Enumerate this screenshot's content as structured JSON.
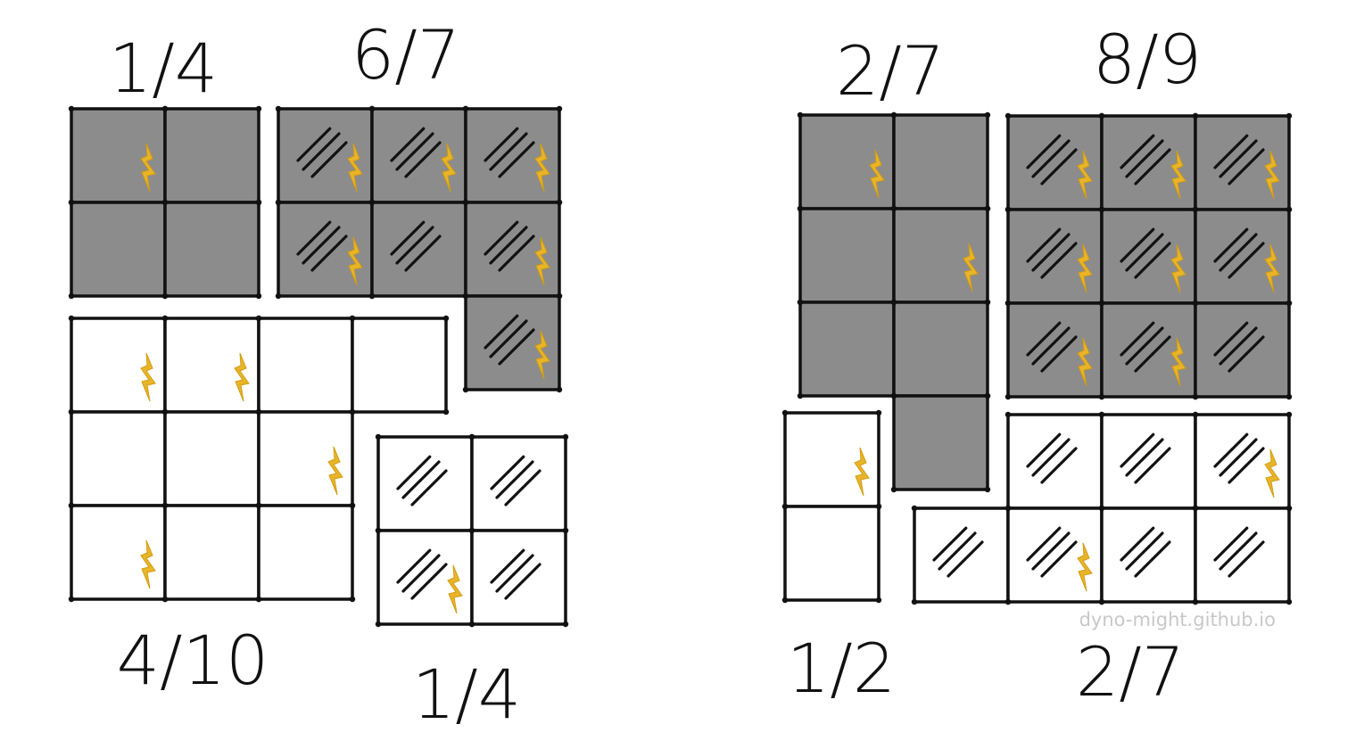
{
  "diagram": {
    "colors": {
      "shaded": "#8c8c8c",
      "plain": "#ffffff",
      "outline": "#111111",
      "bolt": "#e8b52a"
    },
    "icons": {
      "bolt": "lightning-bolt-icon",
      "hatch": "hatch-lines-icon"
    },
    "credit": "dyno-might.github.io",
    "groups": [
      {
        "id": "g1",
        "label": "1/4",
        "shaded": true,
        "hatched": false,
        "cells": 4,
        "bolts": 1
      },
      {
        "id": "g2",
        "label": "6/7",
        "shaded": true,
        "hatched": true,
        "cells": 7,
        "bolts": 6
      },
      {
        "id": "g3",
        "label": "4/10",
        "shaded": false,
        "hatched": false,
        "cells": 10,
        "bolts": 4
      },
      {
        "id": "g4",
        "label": "1/4",
        "shaded": false,
        "hatched": true,
        "cells": 4,
        "bolts": 1
      },
      {
        "id": "g5",
        "label": "2/7",
        "shaded": true,
        "hatched": false,
        "cells": 7,
        "bolts": 2
      },
      {
        "id": "g6",
        "label": "8/9",
        "shaded": true,
        "hatched": true,
        "cells": 9,
        "bolts": 8
      },
      {
        "id": "g7",
        "label": "1/2",
        "shaded": false,
        "hatched": false,
        "cells": 2,
        "bolts": 1
      },
      {
        "id": "g8",
        "label": "2/7",
        "shaded": false,
        "hatched": true,
        "cells": 7,
        "bolts": 2
      }
    ]
  }
}
